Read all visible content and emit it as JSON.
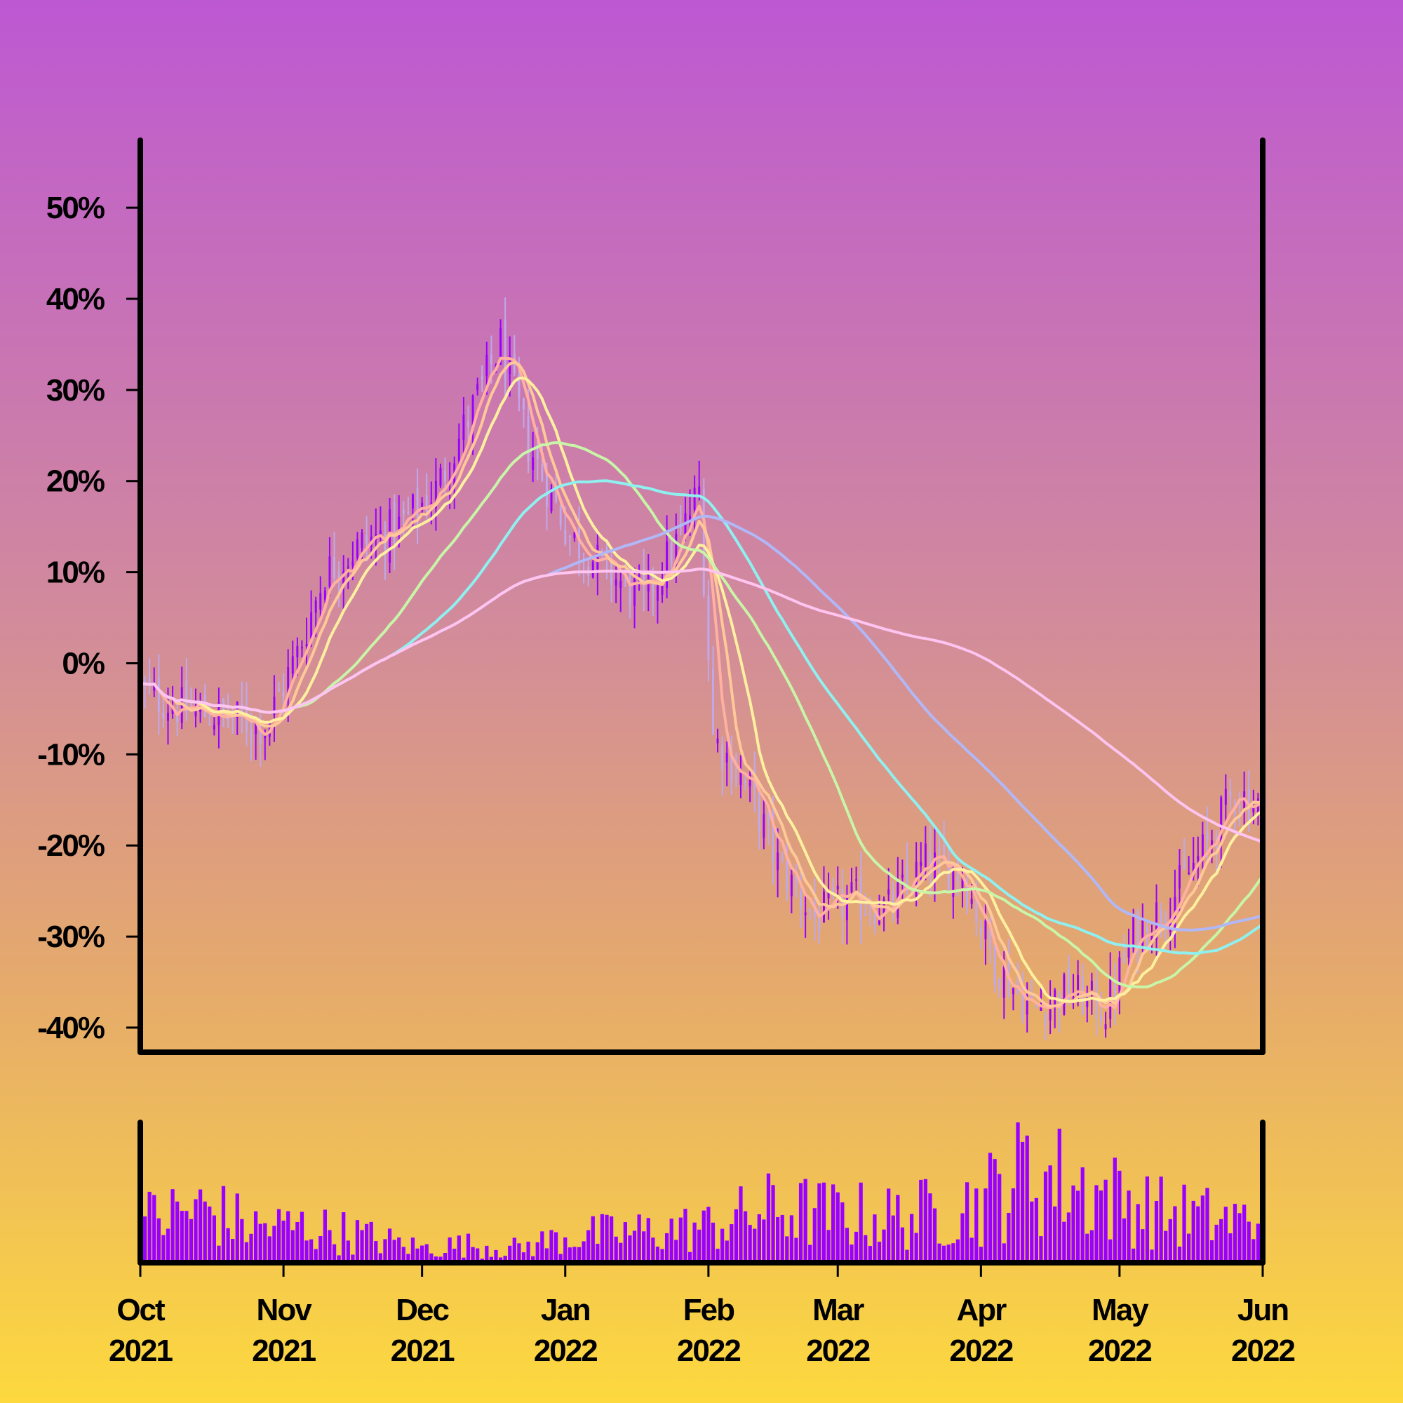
{
  "chart_data": {
    "type": "candlestick",
    "title": "",
    "xlabel": "",
    "ylabel": "",
    "ylim": [
      -42.7,
      57.4
    ],
    "y_ticks": [
      {
        "value": 50,
        "label": "50%"
      },
      {
        "value": 40,
        "label": "40%"
      },
      {
        "value": 30,
        "label": "30%"
      },
      {
        "value": 20,
        "label": "20%"
      },
      {
        "value": 10,
        "label": "10%"
      },
      {
        "value": 0,
        "label": "0%"
      },
      {
        "value": -10,
        "label": "-10%"
      },
      {
        "value": -20,
        "label": "-20%"
      },
      {
        "value": -30,
        "label": "-30%"
      },
      {
        "value": -40,
        "label": "-40%"
      }
    ],
    "x_range": [
      "2021-10-01",
      "2022-06-01"
    ],
    "x_ticks": [
      {
        "date": "2021-10-01",
        "month": "Oct",
        "year": "2021"
      },
      {
        "date": "2021-11-01",
        "month": "Nov",
        "year": "2021"
      },
      {
        "date": "2021-12-01",
        "month": "Dec",
        "year": "2021"
      },
      {
        "date": "2022-01-01",
        "month": "Jan",
        "year": "2022"
      },
      {
        "date": "2022-02-01",
        "month": "Feb",
        "year": "2022"
      },
      {
        "date": "2022-03-01",
        "month": "Mar",
        "year": "2022"
      },
      {
        "date": "2022-04-01",
        "month": "Apr",
        "year": "2022"
      },
      {
        "date": "2022-05-01",
        "month": "May",
        "year": "2022"
      },
      {
        "date": "2022-06-01",
        "month": "Jun",
        "year": "2022"
      }
    ],
    "price_anchors": [
      [
        "2021-10-01",
        -3
      ],
      [
        "2021-10-10",
        -5
      ],
      [
        "2021-10-20",
        -6
      ],
      [
        "2021-10-28",
        -7
      ],
      [
        "2021-11-04",
        1
      ],
      [
        "2021-11-10",
        10
      ],
      [
        "2021-11-18",
        13
      ],
      [
        "2021-11-26",
        15
      ],
      [
        "2021-12-04",
        19
      ],
      [
        "2021-12-12",
        28
      ],
      [
        "2021-12-18",
        35
      ],
      [
        "2021-12-24",
        24
      ],
      [
        "2022-01-02",
        14
      ],
      [
        "2022-01-10",
        10
      ],
      [
        "2022-01-18",
        7
      ],
      [
        "2022-01-26",
        14
      ],
      [
        "2022-01-30",
        19
      ],
      [
        "2022-02-02",
        -8
      ],
      [
        "2022-02-10",
        -14
      ],
      [
        "2022-02-16",
        -22
      ],
      [
        "2022-02-24",
        -28
      ],
      [
        "2022-03-04",
        -26
      ],
      [
        "2022-03-12",
        -27
      ],
      [
        "2022-03-20",
        -22
      ],
      [
        "2022-03-28",
        -23
      ],
      [
        "2022-04-04",
        -33
      ],
      [
        "2022-04-12",
        -38
      ],
      [
        "2022-04-20",
        -36
      ],
      [
        "2022-04-28",
        -38
      ],
      [
        "2022-05-04",
        -30
      ],
      [
        "2022-05-12",
        -26
      ],
      [
        "2022-05-20",
        -20
      ],
      [
        "2022-05-26",
        -14
      ],
      [
        "2022-06-01",
        -16
      ]
    ],
    "moving_averages": [
      {
        "window": 5,
        "color": "#ffb0a0"
      },
      {
        "window": 8,
        "color": "#ffc898"
      },
      {
        "window": 13,
        "color": "#fff0a0"
      },
      {
        "window": 34,
        "color": "#c8f5a8"
      },
      {
        "window": 55,
        "color": "#8ff0f0"
      },
      {
        "window": 89,
        "color": "#b0b8f8"
      },
      {
        "window": 144,
        "color": "#ffc4f0"
      }
    ],
    "volume": {
      "color": "#9900ff",
      "levels": [
        [
          "2021-10-01",
          0.35
        ],
        [
          "2021-10-15",
          0.45
        ],
        [
          "2021-10-25",
          0.3
        ],
        [
          "2021-11-05",
          0.3
        ],
        [
          "2021-11-15",
          0.25
        ],
        [
          "2021-12-01",
          0.12
        ],
        [
          "2021-12-10",
          0.15
        ],
        [
          "2021-12-22",
          0.12
        ],
        [
          "2022-01-01",
          0.22
        ],
        [
          "2022-01-15",
          0.25
        ],
        [
          "2022-02-01",
          0.3
        ],
        [
          "2022-02-15",
          0.45
        ],
        [
          "2022-03-01",
          0.4
        ],
        [
          "2022-03-15",
          0.38
        ],
        [
          "2022-04-01",
          0.5
        ],
        [
          "2022-04-10",
          0.78
        ],
        [
          "2022-04-25",
          0.6
        ],
        [
          "2022-05-10",
          0.42
        ],
        [
          "2022-05-25",
          0.35
        ],
        [
          "2022-06-01",
          0.35
        ]
      ]
    },
    "colors": {
      "up_candle": "#9900ff",
      "down_candle": "#c0a8ea",
      "axis": "#000000"
    }
  }
}
